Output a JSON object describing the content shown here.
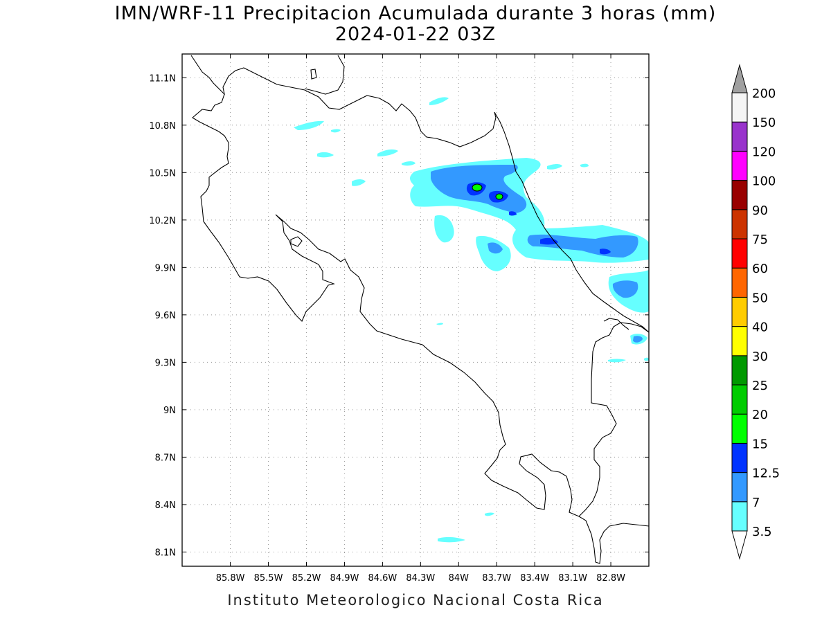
{
  "title": {
    "line1": "IMN/WRF-11 Precipitacion Acumulada durante 3 horas (mm)",
    "line2": "2024-01-22 03Z"
  },
  "credit": "Instituto Meteorologico Nacional Costa Rica",
  "map": {
    "lon_range": [
      -86.18,
      -82.5
    ],
    "lat_range": [
      8.01,
      11.25
    ],
    "lon_ticks": [
      {
        "value": -85.8,
        "label": "85.8W"
      },
      {
        "value": -85.5,
        "label": "85.5W"
      },
      {
        "value": -85.2,
        "label": "85.2W"
      },
      {
        "value": -84.9,
        "label": "84.9W"
      },
      {
        "value": -84.6,
        "label": "84.6W"
      },
      {
        "value": -84.3,
        "label": "84.3W"
      },
      {
        "value": -84.0,
        "label": "84W"
      },
      {
        "value": -83.7,
        "label": "83.7W"
      },
      {
        "value": -83.4,
        "label": "83.4W"
      },
      {
        "value": -83.1,
        "label": "83.1W"
      },
      {
        "value": -82.8,
        "label": "82.8W"
      }
    ],
    "lat_ticks": [
      {
        "value": 11.1,
        "label": "11.1N"
      },
      {
        "value": 10.8,
        "label": "10.8N"
      },
      {
        "value": 10.5,
        "label": "10.5N"
      },
      {
        "value": 10.2,
        "label": "10.2N"
      },
      {
        "value": 9.9,
        "label": "9.9N"
      },
      {
        "value": 9.6,
        "label": "9.6N"
      },
      {
        "value": 9.3,
        "label": "9.3N"
      },
      {
        "value": 9.0,
        "label": "9N"
      },
      {
        "value": 8.7,
        "label": "8.7N"
      },
      {
        "value": 8.4,
        "label": "8.4N"
      },
      {
        "value": 8.1,
        "label": "8.1N"
      }
    ],
    "grid": "dotted"
  },
  "colorbar": {
    "levels": [
      "3.5",
      "7",
      "12.5",
      "15",
      "20",
      "25",
      "30",
      "40",
      "50",
      "60",
      "75",
      "90",
      "100",
      "120",
      "150",
      "200"
    ],
    "colors": [
      "#66ffff",
      "#3399ff",
      "#0033ff",
      "#00ff00",
      "#00cc00",
      "#009900",
      "#ffff00",
      "#ffcc00",
      "#ff6600",
      "#ff0000",
      "#cc3300",
      "#990000",
      "#ff00ff",
      "#9933cc",
      "#f5f5f5"
    ],
    "under_color": "#ffffff",
    "over_color": "#a0a0a0"
  }
}
